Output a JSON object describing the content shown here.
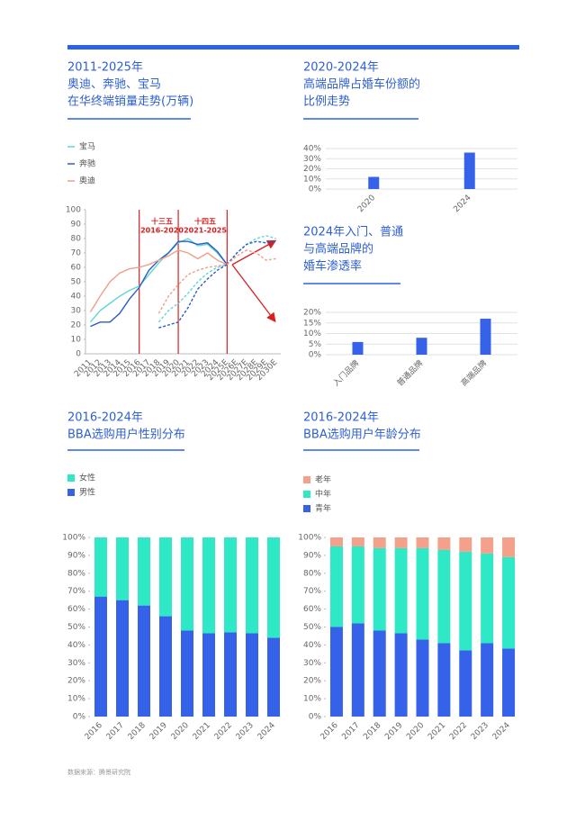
{
  "source": "数据来源：腾景研究院",
  "chart_data": [
    {
      "type": "line",
      "title": [
        "2011-2025年",
        "奥迪、奔驰、宝马",
        "在华终端销量走势(万辆)"
      ],
      "annotations": [
        "十三五",
        "2016-2020",
        "十四五",
        "2021-2025"
      ],
      "categories": [
        "2011",
        "2012",
        "2013",
        "2014",
        "2015",
        "2016",
        "2017",
        "2018",
        "2019",
        "2020",
        "2021",
        "2022",
        "2023",
        "2024",
        "2025E",
        "2026E",
        "2027E",
        "2028E",
        "2029E",
        "2030E"
      ],
      "ylim": [
        0,
        100
      ],
      "yticks": [
        0,
        10,
        20,
        30,
        40,
        50,
        60,
        70,
        80,
        90,
        100
      ],
      "grid": false,
      "series": [
        {
          "name": "宝马",
          "color": "#5fd8d2",
          "values": [
            22,
            30,
            35,
            40,
            44,
            47,
            55,
            63,
            70,
            77,
            80,
            75,
            76,
            70,
            62,
            null,
            null,
            null,
            null,
            null
          ]
        },
        {
          "name": "奔驰",
          "color": "#2a5cc4",
          "values": [
            19,
            22,
            22,
            28,
            38,
            46,
            58,
            65,
            70,
            78,
            78,
            76,
            77,
            71,
            62,
            null,
            null,
            null,
            null,
            null
          ]
        },
        {
          "name": "奥迪",
          "color": "#ef9f8c",
          "values": [
            29,
            40,
            50,
            56,
            59,
            60,
            62,
            65,
            68,
            72,
            70,
            66,
            70,
            65,
            62,
            null,
            null,
            null,
            null,
            null
          ]
        },
        {
          "color": "#5fd8d2",
          "dashed": true,
          "values": [
            null,
            null,
            null,
            null,
            null,
            null,
            null,
            null,
            null,
            null,
            null,
            null,
            null,
            null,
            62,
            70,
            76,
            80,
            82,
            80
          ]
        },
        {
          "color": "#2a5cc4",
          "dashed": true,
          "values": [
            null,
            null,
            null,
            null,
            null,
            null,
            null,
            null,
            null,
            null,
            null,
            null,
            null,
            null,
            62,
            70,
            76,
            78,
            77,
            78
          ]
        },
        {
          "color": "#ef9f8c",
          "dashed": true,
          "values": [
            null,
            null,
            null,
            null,
            null,
            null,
            null,
            null,
            null,
            null,
            null,
            null,
            null,
            null,
            62,
            68,
            72,
            70,
            65,
            66
          ]
        },
        {
          "color": "#ef9f8c",
          "dashed": true,
          "values": [
            null,
            null,
            null,
            null,
            null,
            null,
            null,
            28,
            40,
            48,
            55,
            58,
            60,
            61,
            62,
            null,
            null,
            null,
            null,
            null
          ]
        },
        {
          "color": "#5fd8d2",
          "dashed": true,
          "values": [
            null,
            null,
            null,
            null,
            null,
            null,
            null,
            22,
            30,
            35,
            42,
            50,
            56,
            60,
            62,
            null,
            null,
            null,
            null,
            null
          ]
        },
        {
          "color": "#2a5cc4",
          "dashed": true,
          "values": [
            null,
            null,
            null,
            null,
            null,
            null,
            null,
            18,
            20,
            22,
            32,
            45,
            52,
            58,
            62,
            null,
            null,
            null,
            null,
            null
          ]
        }
      ]
    },
    {
      "type": "bar",
      "title": [
        "2020-2024年",
        "高端品牌占婚车份额的",
        "比例走势"
      ],
      "categories": [
        "2020",
        "2024"
      ],
      "values": [
        12,
        36
      ],
      "color": "#3562e8",
      "ylim": [
        0,
        40
      ],
      "yticks": [
        {
          "value": 0,
          "label": "0%"
        },
        {
          "value": 10,
          "label": "10%"
        },
        {
          "value": 20,
          "label": "20%"
        },
        {
          "value": 30,
          "label": "30%"
        },
        {
          "value": 40,
          "label": "40%"
        }
      ],
      "grid": true
    },
    {
      "type": "bar",
      "title": [
        "2024年入门、普通",
        "与高端品牌的",
        "婚车渗透率"
      ],
      "categories": [
        "入门品牌",
        "普通品牌",
        "高端品牌"
      ],
      "values": [
        6,
        8,
        17
      ],
      "color": "#3562e8",
      "ylim": [
        0,
        20
      ],
      "yticks": [
        {
          "value": 0,
          "label": "0%"
        },
        {
          "value": 5,
          "label": "5%"
        },
        {
          "value": 10,
          "label": "10%"
        },
        {
          "value": 15,
          "label": "15%"
        },
        {
          "value": 20,
          "label": "20%"
        }
      ],
      "grid": true
    },
    {
      "type": "stacked_bar",
      "title": [
        "2016-2024年",
        "BBA选购用户性别分布"
      ],
      "categories": [
        "2016",
        "2017",
        "2018",
        "2019",
        "2020",
        "2021",
        "2022",
        "2023",
        "2024"
      ],
      "ylim": [
        0,
        100
      ],
      "yticks": [
        {
          "value": 0,
          "label": "0%"
        },
        {
          "value": 10,
          "label": "10%"
        },
        {
          "value": 20,
          "label": "20%"
        },
        {
          "value": 30,
          "label": "30%"
        },
        {
          "value": 40,
          "label": "40%"
        },
        {
          "value": 50,
          "label": "50%"
        },
        {
          "value": 60,
          "label": "60%"
        },
        {
          "value": 70,
          "label": "70%"
        },
        {
          "value": 80,
          "label": "80%"
        },
        {
          "value": 90,
          "label": "90%"
        },
        {
          "value": 100,
          "label": "100%"
        }
      ],
      "grid": false,
      "series": [
        {
          "name": "男性",
          "color": "#3562e8",
          "values": [
            67,
            65,
            62,
            56,
            48,
            46.5,
            47,
            46.5,
            44
          ]
        },
        {
          "name": "女性",
          "color": "#2ee8c6",
          "values": [
            33,
            35,
            38,
            44,
            52,
            53.5,
            53,
            53.5,
            56
          ]
        }
      ]
    },
    {
      "type": "stacked_bar",
      "title": [
        "2016-2024年",
        "BBA选购用户年龄分布"
      ],
      "categories": [
        "2016",
        "2017",
        "2018",
        "2019",
        "2020",
        "2021",
        "2022",
        "2023",
        "2024"
      ],
      "ylim": [
        0,
        100
      ],
      "yticks": [
        {
          "value": 0,
          "label": "0%"
        },
        {
          "value": 10,
          "label": "10%"
        },
        {
          "value": 20,
          "label": "20%"
        },
        {
          "value": 30,
          "label": "30%"
        },
        {
          "value": 40,
          "label": "40%"
        },
        {
          "value": 50,
          "label": "50%"
        },
        {
          "value": 60,
          "label": "60%"
        },
        {
          "value": 70,
          "label": "70%"
        },
        {
          "value": 80,
          "label": "80%"
        },
        {
          "value": 90,
          "label": "90%"
        },
        {
          "value": 100,
          "label": "100%"
        }
      ],
      "grid": false,
      "series": [
        {
          "name": "青年",
          "color": "#3562e8",
          "values": [
            50,
            52,
            48,
            46.5,
            43,
            41,
            37,
            41,
            38
          ]
        },
        {
          "name": "中年",
          "color": "#2ee8c6",
          "values": [
            45,
            43,
            46,
            47.5,
            51,
            52,
            55,
            50,
            51
          ]
        },
        {
          "name": "老年",
          "color": "#f4a18c",
          "values": [
            5,
            5,
            6,
            6,
            6,
            7,
            8,
            9,
            11
          ]
        }
      ]
    }
  ]
}
